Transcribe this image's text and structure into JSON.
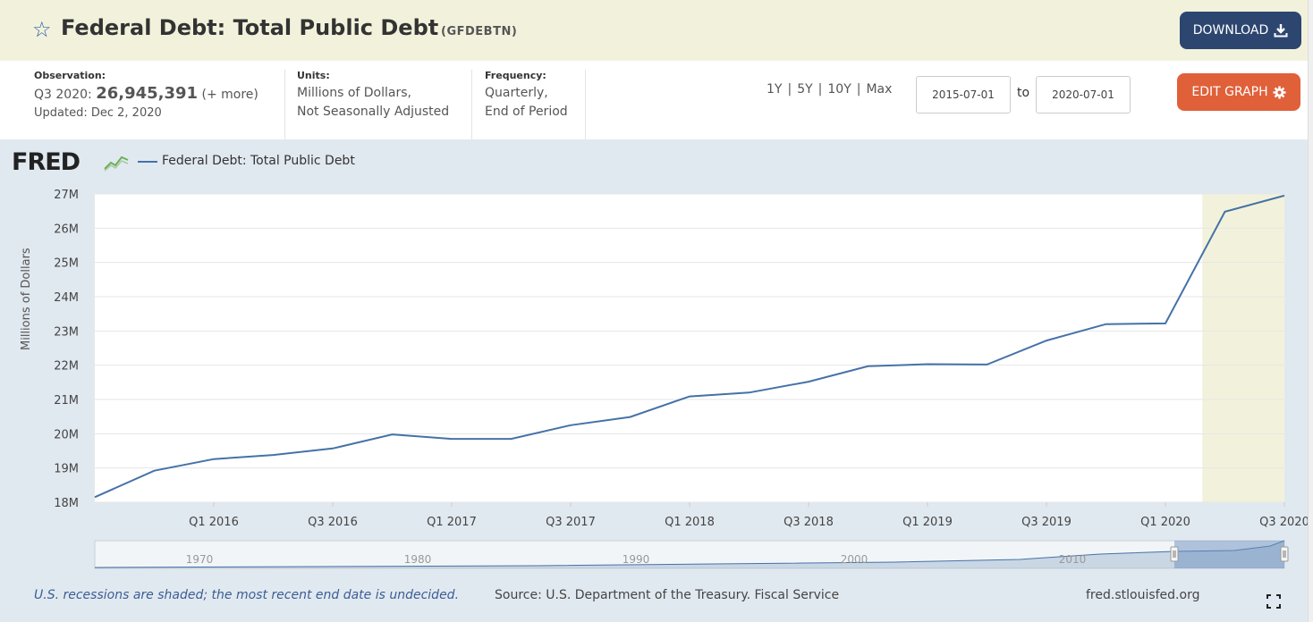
{
  "header": {
    "title": "Federal Debt: Total Public Debt",
    "series_id": "(GFDEBTN)",
    "download_label": "DOWNLOAD",
    "star_icon": "star-outline-icon",
    "download_icon": "download-icon"
  },
  "meta": {
    "observation_label": "Observation:",
    "observation_period": "Q3 2020:",
    "observation_value": "26,945,391",
    "observation_more": "(+ more)",
    "updated": "Updated: Dec 2, 2020",
    "units_label": "Units:",
    "units_line1": "Millions of Dollars,",
    "units_line2": "Not Seasonally Adjusted",
    "frequency_label": "Frequency:",
    "frequency_line1": "Quarterly,",
    "frequency_line2": "End of Period",
    "range_links": [
      "1Y",
      "5Y",
      "10Y",
      "Max"
    ],
    "date_from": "2015-07-01",
    "to_label": "to",
    "date_to": "2020-07-01",
    "edit_label": "EDIT GRAPH",
    "edit_icon": "gear-icon"
  },
  "graph": {
    "logo_text": "FRED",
    "legend_label": "Federal Debt: Total Public Debt",
    "footer_note": "U.S. recessions are shaded; the most recent end date is undecided.",
    "footer_source": "Source: U.S. Department of the Treasury. Fiscal Service",
    "footer_url": "fred.stlouisfed.org",
    "line_color": "#4572a7",
    "recession_color": "#f2f2dc"
  },
  "chart_data": {
    "type": "line",
    "title": "",
    "ylabel": "Millions of Dollars",
    "xlabel": "",
    "ylim": [
      18,
      27
    ],
    "y_unit": "M",
    "y_ticks": [
      "27M",
      "26M",
      "25M",
      "24M",
      "23M",
      "22M",
      "21M",
      "20M",
      "19M",
      "18M"
    ],
    "x_tick_labels": [
      "Q1 2016",
      "Q3 2016",
      "Q1 2017",
      "Q3 2017",
      "Q1 2018",
      "Q3 2018",
      "Q1 2019",
      "Q3 2019",
      "Q1 2020",
      "Q3 2020"
    ],
    "x": [
      "Q3 2015",
      "Q4 2015",
      "Q1 2016",
      "Q2 2016",
      "Q3 2016",
      "Q4 2016",
      "Q1 2017",
      "Q2 2017",
      "Q3 2017",
      "Q4 2017",
      "Q1 2018",
      "Q2 2018",
      "Q3 2018",
      "Q4 2018",
      "Q1 2019",
      "Q2 2019",
      "Q3 2019",
      "Q4 2019",
      "Q1 2020",
      "Q2 2020",
      "Q3 2020"
    ],
    "series": [
      {
        "name": "Federal Debt: Total Public Debt",
        "values": [
          18.15,
          18.92,
          19.26,
          19.38,
          19.57,
          19.98,
          19.85,
          19.85,
          20.25,
          20.49,
          21.09,
          21.2,
          21.52,
          21.97,
          22.03,
          22.02,
          22.72,
          23.2,
          23.22,
          26.48,
          26.95
        ]
      }
    ],
    "recession_start": "Q2 2020",
    "recession_end": "Q3 2020",
    "grid": true,
    "legend_position": "top-left",
    "navigator": {
      "tick_labels": [
        "1970",
        "1980",
        "1990",
        "2000",
        "2010"
      ]
    }
  }
}
